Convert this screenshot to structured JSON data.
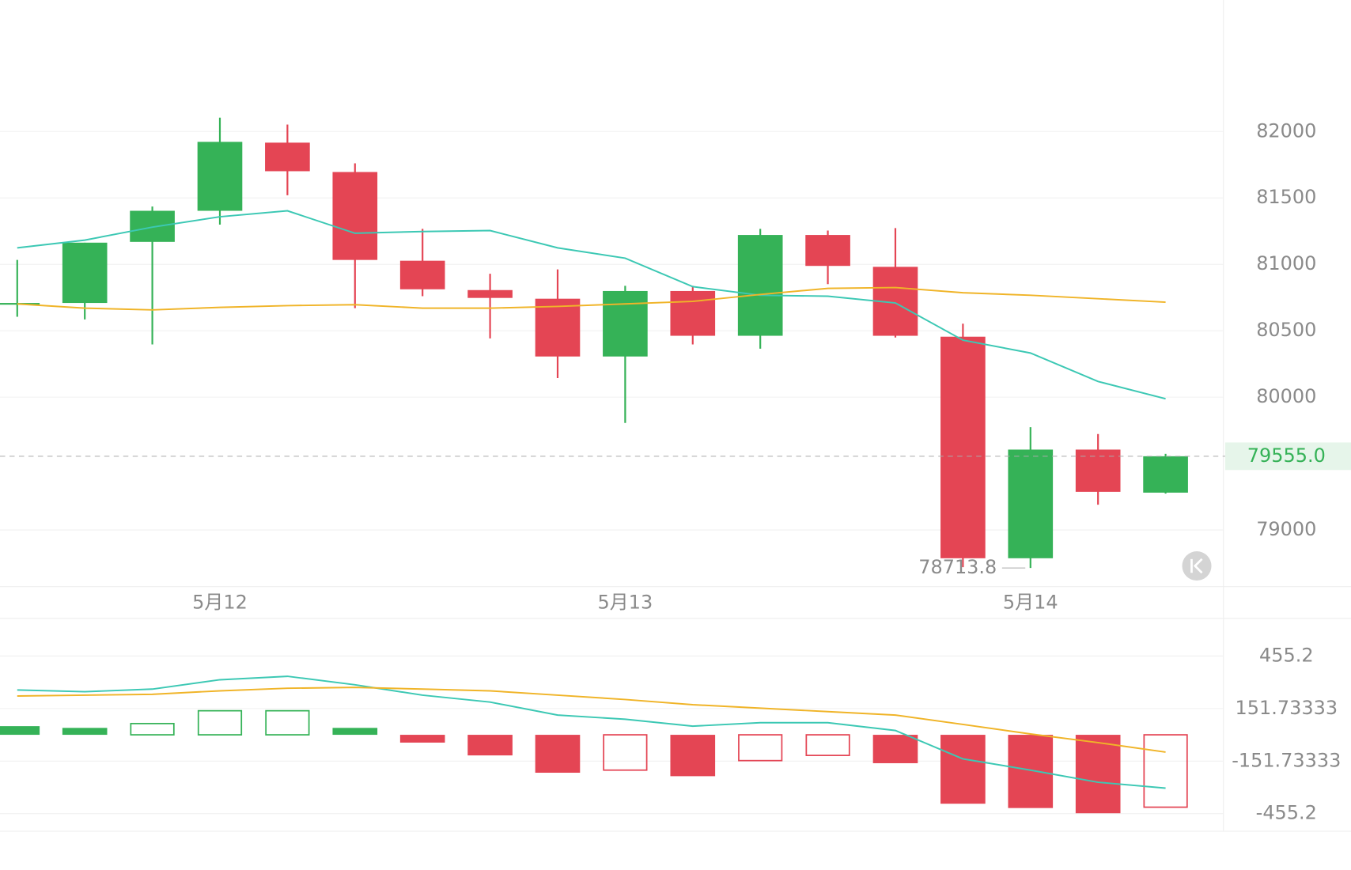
{
  "chart_data": [
    {
      "type": "candlestick",
      "categories": [
        null,
        null,
        null,
        "5月12",
        null,
        null,
        null,
        null,
        null,
        "5月13",
        null,
        null,
        null,
        null,
        null,
        "5月14",
        null,
        null
      ],
      "open": [
        80696,
        80709,
        81169,
        81403,
        81916,
        81695,
        81027,
        80806,
        80741,
        80306,
        80799,
        80462,
        81221,
        80981,
        80455,
        78787,
        79605,
        79281
      ],
      "high": [
        81033,
        81163,
        81435,
        82104,
        82052,
        81760,
        81267,
        80929,
        80962,
        80838,
        80838,
        81267,
        81254,
        81273,
        80553,
        79774,
        79722,
        79573
      ],
      "low": [
        80605,
        80585,
        80397,
        81299,
        81520,
        80670,
        80760,
        80442,
        80144,
        79806,
        80397,
        80365,
        80851,
        80449,
        78720,
        78713.8,
        79190,
        79274
      ],
      "close": [
        80709,
        81163,
        81403,
        81922,
        81701,
        81033,
        80812,
        80747,
        80306,
        80799,
        80462,
        81221,
        80988,
        80462,
        78787,
        79605,
        79287,
        79555
      ],
      "up_color": "#35b257",
      "down_color": "#e44554",
      "series": [
        {
          "color": "#3cc8b4",
          "values": [
            81124,
            81182,
            81280,
            81358,
            81403,
            81234,
            81247,
            81254,
            81124,
            81046,
            80832,
            80767,
            80760,
            80709,
            80429,
            80332,
            80118,
            79988
          ]
        },
        {
          "color": "#f0b428",
          "values": [
            80702,
            80670,
            80657,
            80676,
            80689,
            80696,
            80670,
            80670,
            80683,
            80702,
            80721,
            80773,
            80819,
            80825,
            80786,
            80767,
            80741,
            80715
          ]
        }
      ],
      "last_price": {
        "value": 79555,
        "label": "79555.0"
      },
      "low_annotation": {
        "value": 78713.8,
        "label": "78713.8"
      },
      "ylim": [
        78580,
        82990
      ],
      "yticks": [
        79000,
        80000,
        80500,
        81000,
        81500,
        82000
      ],
      "grid": true
    },
    {
      "type": "macd",
      "histogram": {
        "values": [
          50,
          40,
          65,
          139,
          139,
          40,
          -45,
          -119,
          -219,
          -204,
          -239,
          -149,
          -119,
          -164,
          -398,
          -423,
          -453,
          -418
        ],
        "hollow": [
          false,
          false,
          true,
          true,
          true,
          false,
          false,
          false,
          false,
          true,
          false,
          true,
          true,
          false,
          false,
          false,
          false,
          true
        ],
        "up_color": "#35b257",
        "down_color": "#e44554"
      },
      "series": [
        {
          "color": "#3cc8b4",
          "values": [
            259,
            249,
            264,
            318,
            338,
            289,
            229,
            189,
            114,
            90,
            50,
            70,
            70,
            25,
            -139,
            -204,
            -274,
            -308
          ]
        },
        {
          "color": "#f0b428",
          "values": [
            224,
            229,
            234,
            254,
            269,
            274,
            264,
            254,
            229,
            204,
            174,
            154,
            134,
            114,
            60,
            5,
            -45,
            -100
          ]
        }
      ],
      "ylim": [
        -557,
        672
      ],
      "yticks": [
        -455.2,
        -151.73333,
        151.73333,
        455.2
      ],
      "grid": true
    }
  ]
}
